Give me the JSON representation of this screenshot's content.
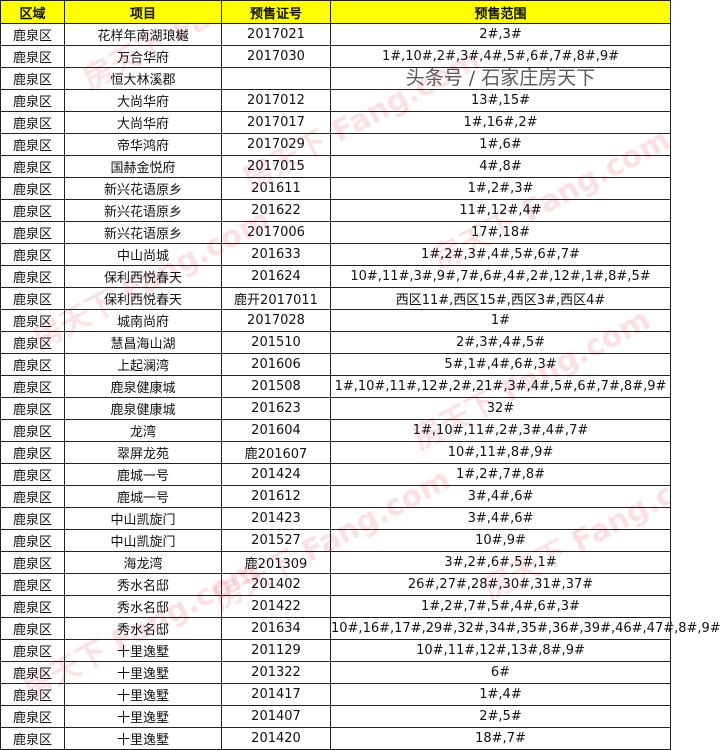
{
  "headers": [
    "区域",
    "项目",
    "预售证号",
    "预售范围"
  ],
  "rows": [
    [
      "鹿泉区",
      "花样年南湖琅樾",
      "2017021",
      "2#,3#"
    ],
    [
      "鹿泉区",
      "万合华府",
      "2017030",
      "1#,10#,2#,3#,4#,5#,6#,7#,8#,9#"
    ],
    [
      "鹿泉区",
      "恒大林溪郡",
      "",
      ""
    ],
    [
      "鹿泉区",
      "大尚华府",
      "2017012",
      "13#,15#"
    ],
    [
      "鹿泉区",
      "大尚华府",
      "2017017",
      "1#,16#,2#"
    ],
    [
      "鹿泉区",
      "帝华鸿府",
      "2017029",
      "1#,6#"
    ],
    [
      "鹿泉区",
      "国赫金悦府",
      "2017015",
      "4#,8#"
    ],
    [
      "鹿泉区",
      "新兴花语原乡",
      "201611",
      "1#,2#,3#"
    ],
    [
      "鹿泉区",
      "新兴花语原乡",
      "201622",
      "11#,12#,4#"
    ],
    [
      "鹿泉区",
      "新兴花语原乡",
      "2017006",
      "17#,18#"
    ],
    [
      "鹿泉区",
      "中山尚城",
      "201633",
      "1#,2#,3#,4#,5#,6#,7#"
    ],
    [
      "鹿泉区",
      "保利西悦春天",
      "201624",
      "10#,11#,3#,9#,7#,6#,4#,2#,12#,1#,8#,5#"
    ],
    [
      "鹿泉区",
      "保利西悦春天",
      "鹿开2017011",
      "西区11#,西区15#,西区3#,西区4#"
    ],
    [
      "鹿泉区",
      "城南尚府",
      "2017028",
      "1#"
    ],
    [
      "鹿泉区",
      "慧昌海山湖",
      "201510",
      "2#,3#,4#,5#"
    ],
    [
      "鹿泉区",
      "上起澜湾",
      "201606",
      "5#,1#,4#,6#,3#"
    ],
    [
      "鹿泉区",
      "鹿泉健康城",
      "201508",
      "1#,10#,11#,12#,2#,21#,3#,4#,5#,6#,7#,8#,9#"
    ],
    [
      "鹿泉区",
      "鹿泉健康城",
      "201623",
      "32#"
    ],
    [
      "鹿泉区",
      "龙湾",
      "201604",
      "1#,10#,11#,2#,3#,4#,7#"
    ],
    [
      "鹿泉区",
      "翠屏龙苑",
      "鹿201607",
      "10#,11#,8#,9#"
    ],
    [
      "鹿泉区",
      "鹿城一号",
      "201424",
      "1#,2#,7#,8#"
    ],
    [
      "鹿泉区",
      "鹿城一号",
      "201612",
      "3#,4#,6#"
    ],
    [
      "鹿泉区",
      "中山凯旋门",
      "201423",
      "3#,4#,6#"
    ],
    [
      "鹿泉区",
      "中山凯旋门",
      "201527",
      "10#,9#"
    ],
    [
      "鹿泉区",
      "海龙湾",
      "鹿201309",
      "3#,2#,6#,5#,1#"
    ],
    [
      "鹿泉区",
      "秀水名邸",
      "201402",
      "26#,27#,28#,30#,31#,37#"
    ],
    [
      "鹿泉区",
      "秀水名邸",
      "201422",
      "1#,2#,7#,5#,4#,6#,3#"
    ],
    [
      "鹿泉区",
      "秀水名邸",
      "201634",
      "10#,16#,17#,29#,32#,34#,35#,36#,39#,46#,47#,8#,9#"
    ],
    [
      "鹿泉区",
      "十里逸墅",
      "201129",
      "10#,11#,12#,13#,8#,9#"
    ],
    [
      "鹿泉区",
      "十里逸墅",
      "201322",
      "6#"
    ],
    [
      "鹿泉区",
      "十里逸墅",
      "201417",
      "1#,4#"
    ],
    [
      "鹿泉区",
      "十里逸墅",
      "201407",
      "2#,5#"
    ],
    [
      "鹿泉区",
      "十里逸墅",
      "201420",
      "18#,7#"
    ]
  ],
  "header_color": "#ffff00",
  "watermark": "房天下 Fang.com",
  "source_watermark": "头条号 / 石家庄房天下"
}
